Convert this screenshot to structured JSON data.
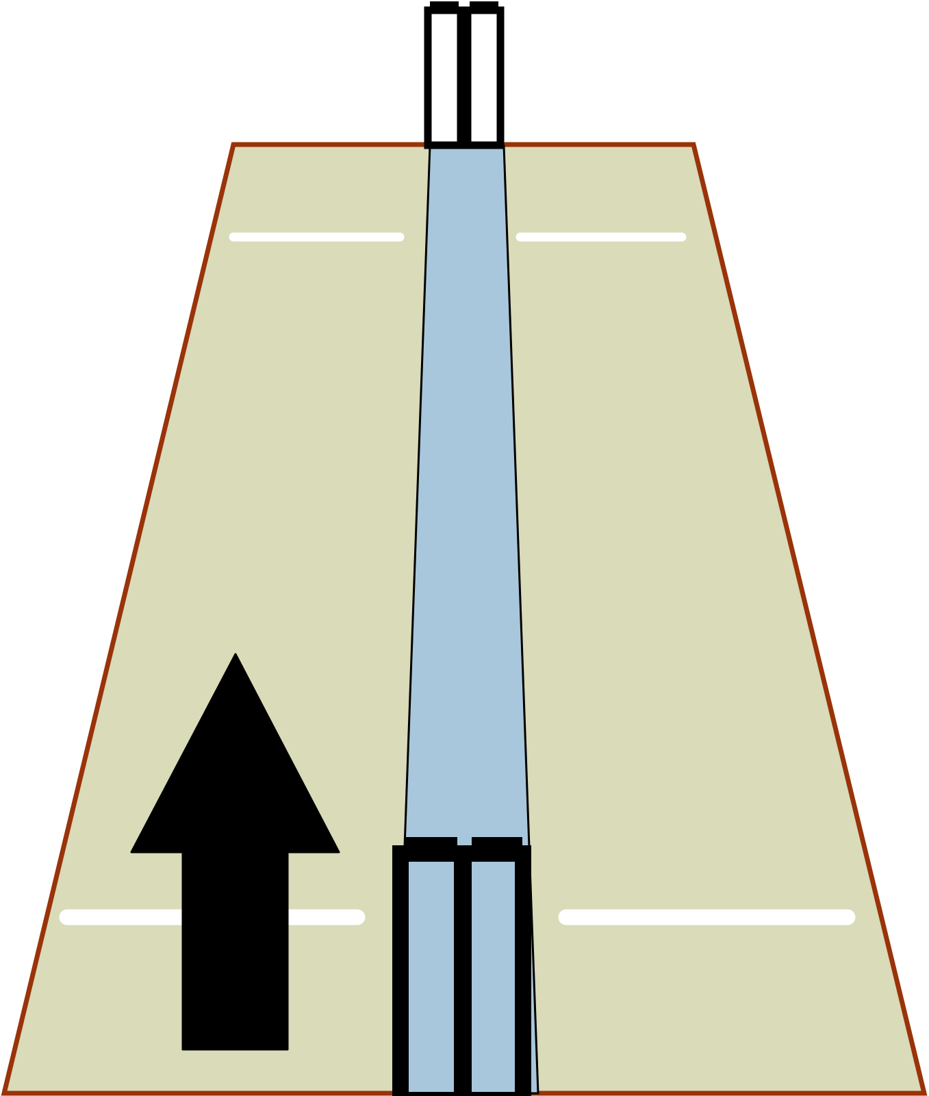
{
  "diagram": {
    "colors": {
      "field": "#d9dbb9",
      "field_border": "#9a3309",
      "pitch": "#a8c7dc",
      "stumps": "#000000",
      "crease": "#ffffff",
      "arrow": "#000000",
      "background": "#ffffff"
    },
    "elements": [
      "field-trapezoid",
      "pitch-strip",
      "far-stumps",
      "near-stumps",
      "far-crease-left",
      "far-crease-right",
      "near-crease-left",
      "near-crease-right",
      "up-arrow"
    ]
  }
}
